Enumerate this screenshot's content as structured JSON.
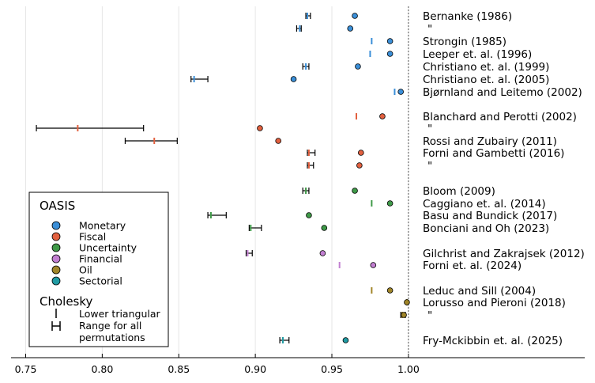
{
  "chart_data": {
    "type": "scatter",
    "x_axis": {
      "xlim": [
        0.74,
        1.05
      ],
      "ticks": [
        0.75,
        0.8,
        0.85,
        0.9,
        0.95,
        1.0
      ],
      "tick_labels": [
        "0.75",
        "0.80",
        "0.85",
        "0.90",
        "0.95",
        "1.00"
      ],
      "grid": true
    },
    "reference_line": {
      "x": 1.0,
      "style": "dotted"
    },
    "colors": {
      "Monetary": "#3b8fd8",
      "Fiscal": "#e2603f",
      "Uncertainty": "#3f9a48",
      "Financial": "#c27fd1",
      "Oil": "#a08528",
      "Sectorial": "#209ba3"
    },
    "rows": [
      {
        "label": "Bernanke (1986)",
        "category": "Monetary",
        "oasis": 0.965,
        "cholesky_range": [
          0.933,
          0.936
        ],
        "lower_triangular": 0.934
      },
      {
        "label": "\"",
        "category": "Monetary",
        "oasis": 0.962,
        "cholesky_range": [
          0.927,
          0.93
        ],
        "lower_triangular": 0.929
      },
      {
        "label": "Strongin (1985)",
        "category": "Monetary",
        "oasis": 0.988,
        "cholesky_range": null,
        "lower_triangular": 0.976
      },
      {
        "label": "Leeper et. al. (1996)",
        "category": "Monetary",
        "oasis": 0.988,
        "cholesky_range": null,
        "lower_triangular": 0.975
      },
      {
        "label": "Christiano et. al. (1999)",
        "category": "Monetary",
        "oasis": 0.967,
        "cholesky_range": [
          0.931,
          0.935
        ],
        "lower_triangular": 0.933
      },
      {
        "label": "Christiano et. al. (2005)",
        "category": "Monetary",
        "oasis": 0.925,
        "cholesky_range": [
          0.858,
          0.869
        ],
        "lower_triangular": 0.86
      },
      {
        "label": "Bjørnland and Leitemo (2002)",
        "category": "Monetary",
        "oasis": 0.995,
        "cholesky_range": null,
        "lower_triangular": 0.991
      },
      {
        "label": "Blanchard and Perotti (2002)",
        "category": "Fiscal",
        "oasis": 0.983,
        "cholesky_range": null,
        "lower_triangular": 0.966
      },
      {
        "label": "\"",
        "category": "Fiscal",
        "oasis": 0.903,
        "cholesky_range": [
          0.757,
          0.827
        ],
        "lower_triangular": 0.784
      },
      {
        "label": "Rossi and Zubairy (2011)",
        "category": "Fiscal",
        "oasis": 0.915,
        "cholesky_range": [
          0.815,
          0.849
        ],
        "lower_triangular": 0.834
      },
      {
        "label": "Forni and Gambetti (2016)",
        "category": "Fiscal",
        "oasis": 0.969,
        "cholesky_range": [
          0.934,
          0.939
        ],
        "lower_triangular": 0.935
      },
      {
        "label": "\"",
        "category": "Fiscal",
        "oasis": 0.968,
        "cholesky_range": [
          0.934,
          0.938
        ],
        "lower_triangular": 0.935
      },
      {
        "label": "Bloom (2009)",
        "category": "Uncertainty",
        "oasis": 0.965,
        "cholesky_range": [
          0.931,
          0.935
        ],
        "lower_triangular": 0.933
      },
      {
        "label": "Caggiano et. al. (2014)",
        "category": "Uncertainty",
        "oasis": 0.988,
        "cholesky_range": null,
        "lower_triangular": 0.976
      },
      {
        "label": "Basu and Bundick (2017)",
        "category": "Uncertainty",
        "oasis": 0.935,
        "cholesky_range": [
          0.869,
          0.881
        ],
        "lower_triangular": 0.871
      },
      {
        "label": "Bonciani and Oh (2023)",
        "category": "Uncertainty",
        "oasis": 0.945,
        "cholesky_range": [
          0.896,
          0.904
        ],
        "lower_triangular": 0.897
      },
      {
        "label": "Gilchrist and Zakrajsek (2012)",
        "category": "Financial",
        "oasis": 0.944,
        "cholesky_range": [
          0.894,
          0.898
        ],
        "lower_triangular": 0.895
      },
      {
        "label": "Forni et. al. (2024)",
        "category": "Financial",
        "oasis": 0.977,
        "cholesky_range": null,
        "lower_triangular": 0.955
      },
      {
        "label": "Leduc and Sill (2004)",
        "category": "Oil",
        "oasis": 0.988,
        "cholesky_range": null,
        "lower_triangular": 0.976
      },
      {
        "label": "Lorusso and Pieroni (2018)",
        "category": "Oil",
        "oasis": 0.999,
        "cholesky_range": null,
        "lower_triangular": 0.999
      },
      {
        "label": "\"",
        "category": "Oil",
        "oasis": 0.997,
        "cholesky_range": [
          0.995,
          0.998
        ],
        "lower_triangular": 0.996
      },
      {
        "label": "Fry-Mckibbin et. al. (2025)",
        "category": "Sectorial",
        "oasis": 0.959,
        "cholesky_range": [
          0.916,
          0.922
        ],
        "lower_triangular": 0.918
      }
    ],
    "legend": {
      "placement": "bottom-left",
      "oasis_title": "OASIS",
      "oasis_entries": [
        "Monetary",
        "Fiscal",
        "Uncertainty",
        "Financial",
        "Oil",
        "Sectorial"
      ],
      "cholesky_title": "Cholesky",
      "cholesky_entries": [
        {
          "marker": "I",
          "label": "Lower triangular"
        },
        {
          "marker": "H",
          "label": "Range for all",
          "label2": "permutations"
        }
      ]
    }
  }
}
